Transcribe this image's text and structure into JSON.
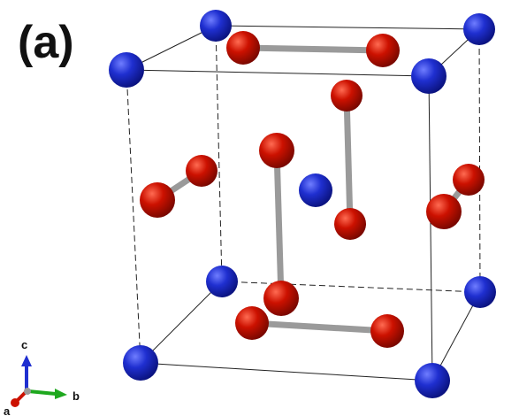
{
  "figure": {
    "panel_label": "(a)"
  },
  "colors": {
    "background": "#ffffff",
    "cell_edge": "#222222",
    "metal_atom": "#1f2fd0",
    "oxygen_atom": "#cc1100",
    "bond": "#9a9a9a",
    "axis_a": "#cc1100",
    "axis_b": "#1ea81e",
    "axis_c": "#1f2fd0",
    "axis_origin": "#9a9a9a"
  },
  "axes": {
    "a_label": "a",
    "b_label": "b",
    "c_label": "c"
  }
}
